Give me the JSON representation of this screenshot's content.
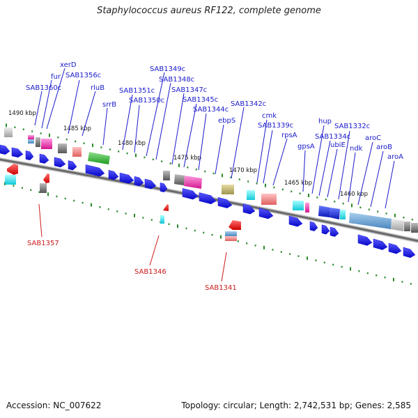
{
  "title": "Staphylococcus aureus RF122, complete genome",
  "footer": {
    "accession": "Accession: NC_007622",
    "topology": "Topology: circular; Length: 2,742,531 bp; Genes: 2,585"
  },
  "colors": {
    "forward_label": "#1a1acc",
    "reverse_label": "#cc1a1a",
    "backbone": "#7a7a7a",
    "tick": "#2a8a2a",
    "cds_arrow": "#1010d8"
  },
  "kbp_markers": [
    "1490 kbp",
    "1485 kbp",
    "1480 kbp",
    "1475 kbp",
    "1470 kbp",
    "1465 kbp",
    "1460 kbp"
  ],
  "forward_genes": [
    "SAB1360c",
    "fur",
    "xerD",
    "SAB1356c",
    "rluB",
    "srrB",
    "SAB1351c",
    "SAB1350c",
    "SAB1349c",
    "SAB1348c",
    "SAB1347c",
    "SAB1345c",
    "SAB1344c",
    "ebpS",
    "SAB1342c",
    "cmk",
    "SAB1339c",
    "rpsA",
    "gpsA",
    "hup",
    "SAB1334c",
    "ubiE",
    "SAB1332c",
    "ndk",
    "aroC",
    "aroB",
    "aroA"
  ],
  "reverse_genes": [
    "SAB1357",
    "SAB1346",
    "SAB1341"
  ]
}
